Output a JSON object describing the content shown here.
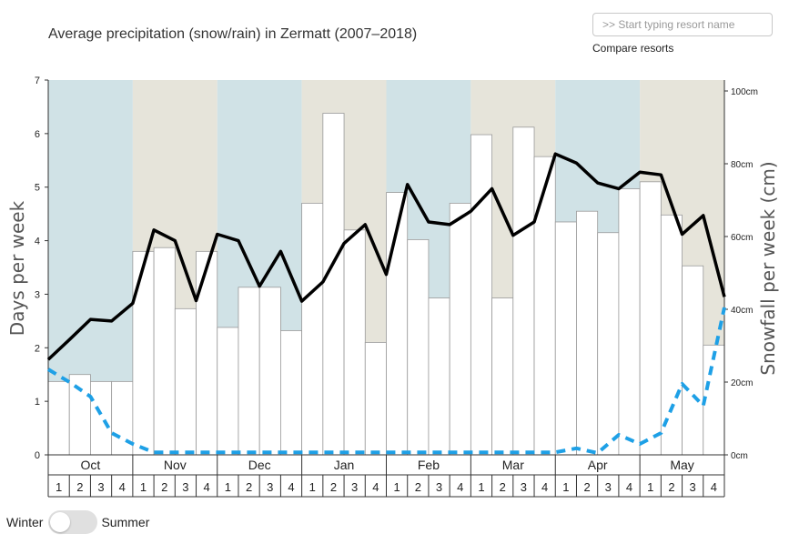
{
  "header": {
    "title": "Average precipitation (snow/rain) in Zermatt (2007–2018)",
    "search_placeholder": ">> Start typing resort name",
    "compare_label": "Compare resorts"
  },
  "season_toggle": {
    "left_label": "Winter",
    "right_label": "Summer",
    "selected": "Winter"
  },
  "colors": {
    "band_blue": "#d0e2e6",
    "band_beige": "#e6e4da",
    "bars": "#ffffff",
    "bar_stroke": "#999999",
    "days_line": "#000000",
    "snow_line": "#1ea0e6"
  },
  "chart_data": {
    "type": "bar+line",
    "title": "Average precipitation (snow/rain) in Zermatt (2007–2018)",
    "ylabel": "Days per week",
    "y2label": "Snowfall per week (cm)",
    "ylim": [
      0,
      7
    ],
    "yticks": [
      "0",
      "1",
      "2",
      "3",
      "4",
      "5",
      "6",
      "7"
    ],
    "y2lim": [
      0,
      100
    ],
    "y2ticks": [
      "0cm",
      "20cm",
      "40cm",
      "60cm",
      "80cm",
      "100cm"
    ],
    "months": [
      "Oct",
      "Nov",
      "Dec",
      "Jan",
      "Feb",
      "Mar",
      "Apr",
      "May"
    ],
    "weeks": [
      "1",
      "2",
      "3",
      "4"
    ],
    "series": [
      {
        "type": "bar",
        "values": [
          1.37,
          1.5,
          1.37,
          1.37,
          3.8,
          3.87,
          2.73,
          3.8,
          2.38,
          3.13,
          3.13,
          2.32,
          4.7,
          6.38,
          4.2,
          2.1,
          4.9,
          4.02,
          2.93,
          4.7,
          5.98,
          2.93,
          6.12,
          5.57,
          4.35,
          4.55,
          4.15,
          4.97,
          5.1,
          4.48,
          3.53,
          2.05
        ]
      },
      {
        "type": "line",
        "axis": "left",
        "values": [
          1.78,
          2.15,
          2.53,
          2.5,
          2.83,
          4.2,
          4.0,
          2.88,
          4.12,
          4.0,
          3.15,
          3.8,
          2.87,
          3.23,
          3.95,
          4.3,
          3.37,
          5.05,
          4.35,
          4.3,
          4.55,
          4.97,
          4.1,
          4.35,
          5.62,
          5.45,
          5.08,
          4.97,
          5.28,
          5.23,
          4.12,
          4.47,
          2.95
        ]
      },
      {
        "type": "line",
        "axis": "right",
        "style": "dashed",
        "values": [
          23.5,
          20.0,
          16.0,
          6.0,
          3.0,
          0.7,
          0.7,
          0.7,
          0.7,
          0.7,
          0.7,
          0.7,
          0.7,
          0.7,
          0.7,
          0.7,
          0.7,
          0.7,
          0.7,
          0.7,
          0.7,
          0.7,
          0.7,
          0.7,
          0.7,
          1.8,
          0.5,
          5.5,
          3.0,
          6.0,
          19.5,
          13.5,
          40.5
        ]
      }
    ],
    "season_bands": [
      "blue",
      "beige",
      "blue",
      "beige",
      "blue",
      "beige",
      "blue",
      "beige"
    ]
  }
}
